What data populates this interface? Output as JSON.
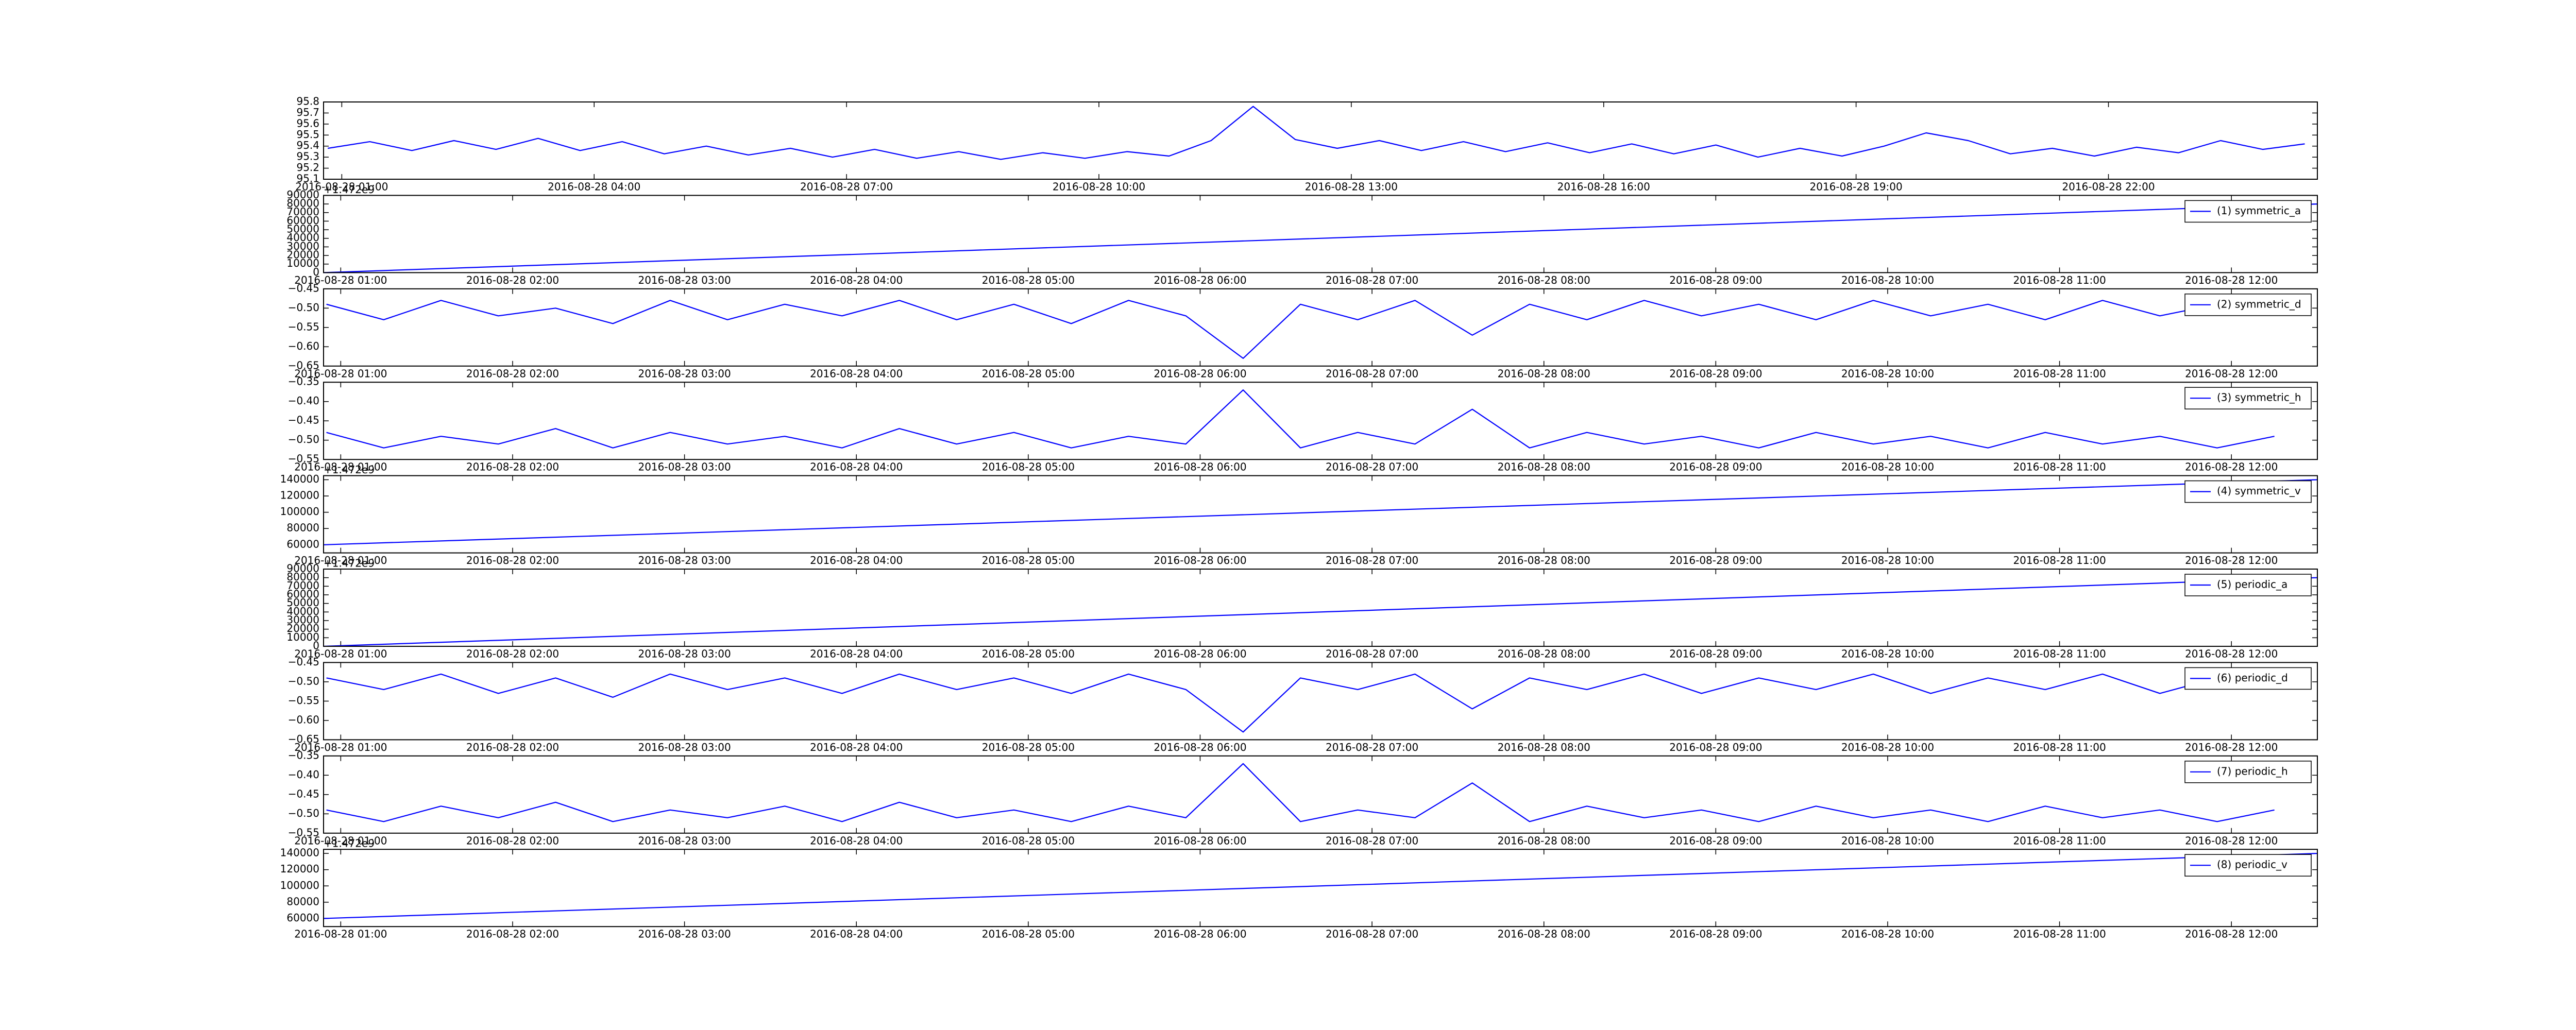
{
  "chart_data": [
    {
      "type": "line",
      "x": [
        "2016-08-28 00:50",
        "2016-08-28 01:20",
        "2016-08-28 01:50",
        "2016-08-28 02:20",
        "2016-08-28 02:50",
        "2016-08-28 03:20",
        "2016-08-28 03:50",
        "2016-08-28 04:20",
        "2016-08-28 04:50",
        "2016-08-28 05:20",
        "2016-08-28 05:50",
        "2016-08-28 06:20",
        "2016-08-28 06:50",
        "2016-08-28 07:20",
        "2016-08-28 07:50",
        "2016-08-28 08:20",
        "2016-08-28 08:50",
        "2016-08-28 09:20",
        "2016-08-28 09:50",
        "2016-08-28 10:20",
        "2016-08-28 10:50",
        "2016-08-28 11:20",
        "2016-08-28 11:50",
        "2016-08-28 12:20",
        "2016-08-28 12:50",
        "2016-08-28 13:20",
        "2016-08-28 13:50",
        "2016-08-28 14:20",
        "2016-08-28 14:50",
        "2016-08-28 15:20",
        "2016-08-28 15:50",
        "2016-08-28 16:20",
        "2016-08-28 16:50",
        "2016-08-28 17:20",
        "2016-08-28 17:50",
        "2016-08-28 18:20",
        "2016-08-28 18:50",
        "2016-08-28 19:20",
        "2016-08-28 19:50",
        "2016-08-28 20:20",
        "2016-08-28 20:50",
        "2016-08-28 21:20",
        "2016-08-28 21:50",
        "2016-08-28 22:20",
        "2016-08-28 22:50",
        "2016-08-28 23:20",
        "2016-08-28 23:50",
        "2016-08-29 00:20"
      ],
      "series": [
        {
          "color": "#0000ff",
          "values": [
            95.38,
            95.44,
            95.36,
            95.45,
            95.37,
            95.47,
            95.36,
            95.44,
            95.33,
            95.4,
            95.32,
            95.38,
            95.3,
            95.37,
            95.29,
            95.35,
            95.28,
            95.34,
            95.29,
            95.35,
            95.31,
            95.45,
            95.76,
            95.46,
            95.38,
            95.45,
            95.36,
            95.44,
            95.35,
            95.43,
            95.34,
            95.42,
            95.33,
            95.41,
            95.3,
            95.38,
            95.31,
            95.4,
            95.52,
            95.45,
            95.33,
            95.38,
            95.31,
            95.39,
            95.34,
            95.45,
            95.37,
            95.42
          ]
        }
      ],
      "xlim": [
        "2016-08-28 00:47",
        "2016-08-29 00:29"
      ],
      "xticks": [
        "2016-08-28 01:00",
        "2016-08-28 04:00",
        "2016-08-28 07:00",
        "2016-08-28 10:00",
        "2016-08-28 13:00",
        "2016-08-28 16:00",
        "2016-08-28 19:00",
        "2016-08-28 22:00"
      ],
      "ylim": [
        95.1,
        95.8
      ],
      "yticks": [
        95.1,
        95.2,
        95.3,
        95.4,
        95.5,
        95.6,
        95.7,
        95.8
      ]
    },
    {
      "type": "line",
      "offset_text": "+1.472e9",
      "legend": "upper right",
      "x": [
        "2016-08-28 00:54",
        "2016-08-28 12:30"
      ],
      "series": [
        {
          "name": "(1) symmetric_a",
          "color": "#0000ff",
          "values": [
            0,
            80000
          ]
        }
      ],
      "xlim": [
        "2016-08-28 00:54",
        "2016-08-28 12:30"
      ],
      "xticks": [
        "2016-08-28 01:00",
        "2016-08-28 02:00",
        "2016-08-28 03:00",
        "2016-08-28 04:00",
        "2016-08-28 05:00",
        "2016-08-28 06:00",
        "2016-08-28 07:00",
        "2016-08-28 08:00",
        "2016-08-28 09:00",
        "2016-08-28 10:00",
        "2016-08-28 11:00",
        "2016-08-28 12:00"
      ],
      "ylim": [
        0,
        90000
      ],
      "yticks": [
        0,
        10000,
        20000,
        30000,
        40000,
        50000,
        60000,
        70000,
        80000,
        90000
      ]
    },
    {
      "type": "line",
      "legend": "upper right",
      "x": [
        "2016-08-28 00:55",
        "2016-08-28 01:15",
        "2016-08-28 01:35",
        "2016-08-28 01:55",
        "2016-08-28 02:15",
        "2016-08-28 02:35",
        "2016-08-28 02:55",
        "2016-08-28 03:15",
        "2016-08-28 03:35",
        "2016-08-28 03:55",
        "2016-08-28 04:15",
        "2016-08-28 04:35",
        "2016-08-28 04:55",
        "2016-08-28 05:15",
        "2016-08-28 05:35",
        "2016-08-28 05:55",
        "2016-08-28 06:15",
        "2016-08-28 06:35",
        "2016-08-28 06:55",
        "2016-08-28 07:15",
        "2016-08-28 07:35",
        "2016-08-28 07:55",
        "2016-08-28 08:15",
        "2016-08-28 08:35",
        "2016-08-28 08:55",
        "2016-08-28 09:15",
        "2016-08-28 09:35",
        "2016-08-28 09:55",
        "2016-08-28 10:15",
        "2016-08-28 10:35",
        "2016-08-28 10:55",
        "2016-08-28 11:15",
        "2016-08-28 11:35",
        "2016-08-28 11:55",
        "2016-08-28 12:15"
      ],
      "series": [
        {
          "name": "(2) symmetric_d",
          "color": "#0000ff",
          "values": [
            -0.49,
            -0.53,
            -0.48,
            -0.52,
            -0.5,
            -0.54,
            -0.48,
            -0.53,
            -0.49,
            -0.52,
            -0.48,
            -0.53,
            -0.49,
            -0.54,
            -0.48,
            -0.52,
            -0.63,
            -0.49,
            -0.53,
            -0.48,
            -0.57,
            -0.49,
            -0.53,
            -0.48,
            -0.52,
            -0.49,
            -0.53,
            -0.48,
            -0.52,
            -0.49,
            -0.53,
            -0.48,
            -0.52,
            -0.49,
            -0.51
          ]
        }
      ],
      "xlim": [
        "2016-08-28 00:54",
        "2016-08-28 12:30"
      ],
      "xticks": [
        "2016-08-28 01:00",
        "2016-08-28 02:00",
        "2016-08-28 03:00",
        "2016-08-28 04:00",
        "2016-08-28 05:00",
        "2016-08-28 06:00",
        "2016-08-28 07:00",
        "2016-08-28 08:00",
        "2016-08-28 09:00",
        "2016-08-28 10:00",
        "2016-08-28 11:00",
        "2016-08-28 12:00"
      ],
      "ylim": [
        -0.65,
        -0.45
      ],
      "yticks": [
        {
          "value": -0.65,
          "label": "−0.65"
        },
        {
          "value": -0.6,
          "label": "−0.60"
        },
        {
          "value": -0.55,
          "label": "−0.55"
        },
        {
          "value": -0.5,
          "label": "−0.50"
        },
        {
          "value": -0.45,
          "label": "−0.45"
        }
      ]
    },
    {
      "type": "line",
      "legend": "upper right",
      "x": [
        "2016-08-28 00:55",
        "2016-08-28 01:15",
        "2016-08-28 01:35",
        "2016-08-28 01:55",
        "2016-08-28 02:15",
        "2016-08-28 02:35",
        "2016-08-28 02:55",
        "2016-08-28 03:15",
        "2016-08-28 03:35",
        "2016-08-28 03:55",
        "2016-08-28 04:15",
        "2016-08-28 04:35",
        "2016-08-28 04:55",
        "2016-08-28 05:15",
        "2016-08-28 05:35",
        "2016-08-28 05:55",
        "2016-08-28 06:15",
        "2016-08-28 06:35",
        "2016-08-28 06:55",
        "2016-08-28 07:15",
        "2016-08-28 07:35",
        "2016-08-28 07:55",
        "2016-08-28 08:15",
        "2016-08-28 08:35",
        "2016-08-28 08:55",
        "2016-08-28 09:15",
        "2016-08-28 09:35",
        "2016-08-28 09:55",
        "2016-08-28 10:15",
        "2016-08-28 10:35",
        "2016-08-28 10:55",
        "2016-08-28 11:15",
        "2016-08-28 11:35",
        "2016-08-28 11:55",
        "2016-08-28 12:15"
      ],
      "series": [
        {
          "name": "(3) symmetric_h",
          "color": "#0000ff",
          "values": [
            -0.48,
            -0.52,
            -0.49,
            -0.51,
            -0.47,
            -0.52,
            -0.48,
            -0.51,
            -0.49,
            -0.52,
            -0.47,
            -0.51,
            -0.48,
            -0.52,
            -0.49,
            -0.51,
            -0.37,
            -0.52,
            -0.48,
            -0.51,
            -0.42,
            -0.52,
            -0.48,
            -0.51,
            -0.49,
            -0.52,
            -0.48,
            -0.51,
            -0.49,
            -0.52,
            -0.48,
            -0.51,
            -0.49,
            -0.52,
            -0.49
          ]
        }
      ],
      "xlim": [
        "2016-08-28 00:54",
        "2016-08-28 12:30"
      ],
      "xticks": [
        "2016-08-28 01:00",
        "2016-08-28 02:00",
        "2016-08-28 03:00",
        "2016-08-28 04:00",
        "2016-08-28 05:00",
        "2016-08-28 06:00",
        "2016-08-28 07:00",
        "2016-08-28 08:00",
        "2016-08-28 09:00",
        "2016-08-28 10:00",
        "2016-08-28 11:00",
        "2016-08-28 12:00"
      ],
      "ylim": [
        -0.55,
        -0.35
      ],
      "yticks": [
        {
          "value": -0.55,
          "label": "−0.55"
        },
        {
          "value": -0.5,
          "label": "−0.50"
        },
        {
          "value": -0.45,
          "label": "−0.45"
        },
        {
          "value": -0.4,
          "label": "−0.40"
        },
        {
          "value": -0.35,
          "label": "−0.35"
        }
      ]
    },
    {
      "type": "line",
      "offset_text": "+1.472e9",
      "legend": "upper right",
      "x": [
        "2016-08-28 00:54",
        "2016-08-28 12:30"
      ],
      "series": [
        {
          "name": "(4) symmetric_v",
          "color": "#0000ff",
          "values": [
            60000,
            140000
          ]
        }
      ],
      "xlim": [
        "2016-08-28 00:54",
        "2016-08-28 12:30"
      ],
      "xticks": [
        "2016-08-28 01:00",
        "2016-08-28 02:00",
        "2016-08-28 03:00",
        "2016-08-28 04:00",
        "2016-08-28 05:00",
        "2016-08-28 06:00",
        "2016-08-28 07:00",
        "2016-08-28 08:00",
        "2016-08-28 09:00",
        "2016-08-28 10:00",
        "2016-08-28 11:00",
        "2016-08-28 12:00"
      ],
      "ylim": [
        50000,
        145000
      ],
      "yticks": [
        60000,
        80000,
        100000,
        120000,
        140000
      ]
    },
    {
      "type": "line",
      "offset_text": "+1.472e9",
      "legend": "upper right",
      "x": [
        "2016-08-28 00:54",
        "2016-08-28 12:30"
      ],
      "series": [
        {
          "name": "(5) periodic_a",
          "color": "#0000ff",
          "values": [
            0,
            80000
          ]
        }
      ],
      "xlim": [
        "2016-08-28 00:54",
        "2016-08-28 12:30"
      ],
      "xticks": [
        "2016-08-28 01:00",
        "2016-08-28 02:00",
        "2016-08-28 03:00",
        "2016-08-28 04:00",
        "2016-08-28 05:00",
        "2016-08-28 06:00",
        "2016-08-28 07:00",
        "2016-08-28 08:00",
        "2016-08-28 09:00",
        "2016-08-28 10:00",
        "2016-08-28 11:00",
        "2016-08-28 12:00"
      ],
      "ylim": [
        0,
        90000
      ],
      "yticks": [
        0,
        10000,
        20000,
        30000,
        40000,
        50000,
        60000,
        70000,
        80000,
        90000
      ]
    },
    {
      "type": "line",
      "legend": "upper right",
      "x": [
        "2016-08-28 00:55",
        "2016-08-28 01:15",
        "2016-08-28 01:35",
        "2016-08-28 01:55",
        "2016-08-28 02:15",
        "2016-08-28 02:35",
        "2016-08-28 02:55",
        "2016-08-28 03:15",
        "2016-08-28 03:35",
        "2016-08-28 03:55",
        "2016-08-28 04:15",
        "2016-08-28 04:35",
        "2016-08-28 04:55",
        "2016-08-28 05:15",
        "2016-08-28 05:35",
        "2016-08-28 05:55",
        "2016-08-28 06:15",
        "2016-08-28 06:35",
        "2016-08-28 06:55",
        "2016-08-28 07:15",
        "2016-08-28 07:35",
        "2016-08-28 07:55",
        "2016-08-28 08:15",
        "2016-08-28 08:35",
        "2016-08-28 08:55",
        "2016-08-28 09:15",
        "2016-08-28 09:35",
        "2016-08-28 09:55",
        "2016-08-28 10:15",
        "2016-08-28 10:35",
        "2016-08-28 10:55",
        "2016-08-28 11:15",
        "2016-08-28 11:35",
        "2016-08-28 11:55",
        "2016-08-28 12:15"
      ],
      "series": [
        {
          "name": "(6) periodic_d",
          "color": "#0000ff",
          "values": [
            -0.49,
            -0.52,
            -0.48,
            -0.53,
            -0.49,
            -0.54,
            -0.48,
            -0.52,
            -0.49,
            -0.53,
            -0.48,
            -0.52,
            -0.49,
            -0.53,
            -0.48,
            -0.52,
            -0.63,
            -0.49,
            -0.52,
            -0.48,
            -0.57,
            -0.49,
            -0.52,
            -0.48,
            -0.53,
            -0.49,
            -0.52,
            -0.48,
            -0.53,
            -0.49,
            -0.52,
            -0.48,
            -0.53,
            -0.49,
            -0.51
          ]
        }
      ],
      "xlim": [
        "2016-08-28 00:54",
        "2016-08-28 12:30"
      ],
      "xticks": [
        "2016-08-28 01:00",
        "2016-08-28 02:00",
        "2016-08-28 03:00",
        "2016-08-28 04:00",
        "2016-08-28 05:00",
        "2016-08-28 06:00",
        "2016-08-28 07:00",
        "2016-08-28 08:00",
        "2016-08-28 09:00",
        "2016-08-28 10:00",
        "2016-08-28 11:00",
        "2016-08-28 12:00"
      ],
      "ylim": [
        -0.65,
        -0.45
      ],
      "yticks": [
        {
          "value": -0.65,
          "label": "−0.65"
        },
        {
          "value": -0.6,
          "label": "−0.60"
        },
        {
          "value": -0.55,
          "label": "−0.55"
        },
        {
          "value": -0.5,
          "label": "−0.50"
        },
        {
          "value": -0.45,
          "label": "−0.45"
        }
      ]
    },
    {
      "type": "line",
      "legend": "upper right",
      "x": [
        "2016-08-28 00:55",
        "2016-08-28 01:15",
        "2016-08-28 01:35",
        "2016-08-28 01:55",
        "2016-08-28 02:15",
        "2016-08-28 02:35",
        "2016-08-28 02:55",
        "2016-08-28 03:15",
        "2016-08-28 03:35",
        "2016-08-28 03:55",
        "2016-08-28 04:15",
        "2016-08-28 04:35",
        "2016-08-28 04:55",
        "2016-08-28 05:15",
        "2016-08-28 05:35",
        "2016-08-28 05:55",
        "2016-08-28 06:15",
        "2016-08-28 06:35",
        "2016-08-28 06:55",
        "2016-08-28 07:15",
        "2016-08-28 07:35",
        "2016-08-28 07:55",
        "2016-08-28 08:15",
        "2016-08-28 08:35",
        "2016-08-28 08:55",
        "2016-08-28 09:15",
        "2016-08-28 09:35",
        "2016-08-28 09:55",
        "2016-08-28 10:15",
        "2016-08-28 10:35",
        "2016-08-28 10:55",
        "2016-08-28 11:15",
        "2016-08-28 11:35",
        "2016-08-28 11:55",
        "2016-08-28 12:15"
      ],
      "series": [
        {
          "name": "(7) periodic_h",
          "color": "#0000ff",
          "values": [
            -0.49,
            -0.52,
            -0.48,
            -0.51,
            -0.47,
            -0.52,
            -0.49,
            -0.51,
            -0.48,
            -0.52,
            -0.47,
            -0.51,
            -0.49,
            -0.52,
            -0.48,
            -0.51,
            -0.37,
            -0.52,
            -0.49,
            -0.51,
            -0.42,
            -0.52,
            -0.48,
            -0.51,
            -0.49,
            -0.52,
            -0.48,
            -0.51,
            -0.49,
            -0.52,
            -0.48,
            -0.51,
            -0.49,
            -0.52,
            -0.49
          ]
        }
      ],
      "xlim": [
        "2016-08-28 00:54",
        "2016-08-28 12:30"
      ],
      "xticks": [
        "2016-08-28 01:00",
        "2016-08-28 02:00",
        "2016-08-28 03:00",
        "2016-08-28 04:00",
        "2016-08-28 05:00",
        "2016-08-28 06:00",
        "2016-08-28 07:00",
        "2016-08-28 08:00",
        "2016-08-28 09:00",
        "2016-08-28 10:00",
        "2016-08-28 11:00",
        "2016-08-28 12:00"
      ],
      "ylim": [
        -0.55,
        -0.35
      ],
      "yticks": [
        {
          "value": -0.55,
          "label": "−0.55"
        },
        {
          "value": -0.5,
          "label": "−0.50"
        },
        {
          "value": -0.45,
          "label": "−0.45"
        },
        {
          "value": -0.4,
          "label": "−0.40"
        },
        {
          "value": -0.35,
          "label": "−0.35"
        }
      ]
    },
    {
      "type": "line",
      "offset_text": "+1.472e9",
      "legend": "upper right",
      "x": [
        "2016-08-28 00:54",
        "2016-08-28 12:30"
      ],
      "series": [
        {
          "name": "(8) periodic_v",
          "color": "#0000ff",
          "values": [
            60000,
            140000
          ]
        }
      ],
      "xlim": [
        "2016-08-28 00:54",
        "2016-08-28 12:30"
      ],
      "xticks": [
        "2016-08-28 01:00",
        "2016-08-28 02:00",
        "2016-08-28 03:00",
        "2016-08-28 04:00",
        "2016-08-28 05:00",
        "2016-08-28 06:00",
        "2016-08-28 07:00",
        "2016-08-28 08:00",
        "2016-08-28 09:00",
        "2016-08-28 10:00",
        "2016-08-28 11:00",
        "2016-08-28 12:00"
      ],
      "ylim": [
        50000,
        145000
      ],
      "yticks": [
        60000,
        80000,
        100000,
        120000,
        140000
      ]
    }
  ]
}
